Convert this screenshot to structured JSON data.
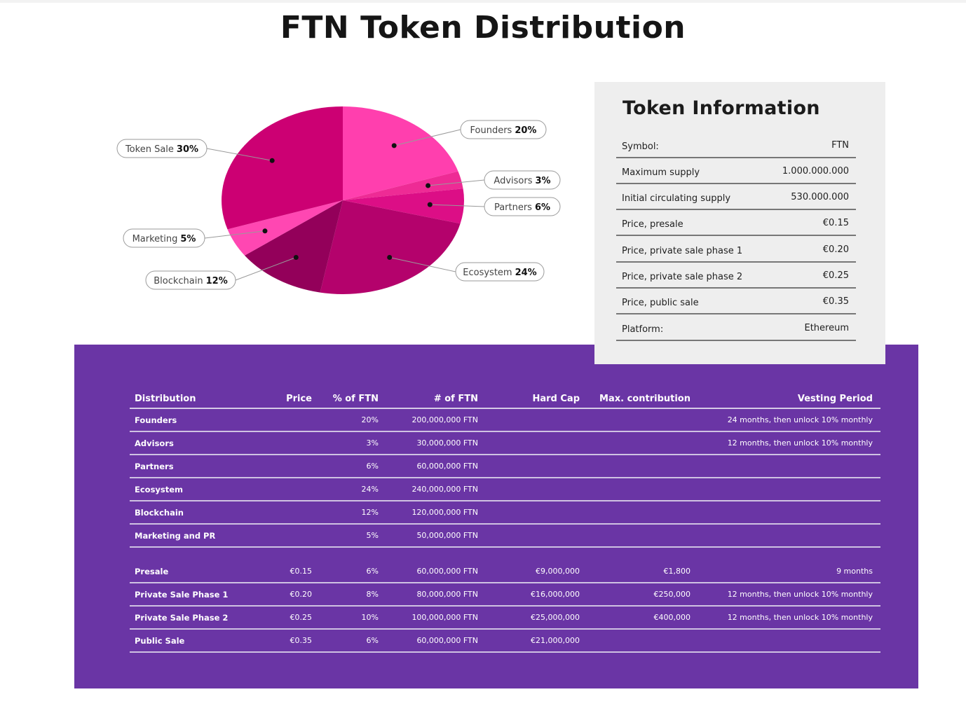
{
  "title": "FTN Token Distribution",
  "chart_data": {
    "type": "pie",
    "title": "",
    "slices": [
      {
        "label": "Founders",
        "pct_label": "20%",
        "value": 20,
        "color": "#ff3fae"
      },
      {
        "label": "Advisors",
        "pct_label": "3%",
        "value": 3,
        "color": "#ee2b95"
      },
      {
        "label": "Partners",
        "pct_label": "6%",
        "value": 6,
        "color": "#dc0e86"
      },
      {
        "label": "Ecosystem",
        "pct_label": "24%",
        "value": 24,
        "color": "#b4026c"
      },
      {
        "label": "Blockchain",
        "pct_label": "12%",
        "value": 12,
        "color": "#93005a"
      },
      {
        "label": "Marketing",
        "pct_label": "5%",
        "value": 5,
        "color": "#ff47b2"
      },
      {
        "label": "Token Sale",
        "pct_label": "30%",
        "value": 30,
        "color": "#cc0073"
      }
    ]
  },
  "token_info": {
    "title": "Token Information",
    "rows": [
      {
        "label": "Symbol:",
        "value": "FTN"
      },
      {
        "label": "Maximum supply",
        "value": "1.000.000.000"
      },
      {
        "label": "Initial circulating supply",
        "value": "530.000.000"
      },
      {
        "label": "Price, presale",
        "value": "€0.15"
      },
      {
        "label": "Price, private sale phase 1",
        "value": "€0.20"
      },
      {
        "label": "Price, private sale phase 2",
        "value": "€0.25"
      },
      {
        "label": "Price, public sale",
        "value": "€0.35"
      },
      {
        "label": "Platform:",
        "value": "Ethereum"
      }
    ]
  },
  "distribution_table": {
    "headers": {
      "distribution": "Distribution",
      "price": "Price",
      "pct": "% of FTN",
      "num": "# of FTN",
      "hardcap": "Hard Cap",
      "maxcontrib": "Max. contribution",
      "vesting": "Vesting Period"
    },
    "group1": [
      {
        "name": "Founders",
        "price": "",
        "pct": "20%",
        "num": "200,000,000 FTN",
        "hardcap": "",
        "maxcontrib": "",
        "vesting": "24 months, then unlock 10% monthly"
      },
      {
        "name": "Advisors",
        "price": "",
        "pct": "3%",
        "num": "30,000,000 FTN",
        "hardcap": "",
        "maxcontrib": "",
        "vesting": "12 months, then unlock 10% monthly"
      },
      {
        "name": "Partners",
        "price": "",
        "pct": "6%",
        "num": "60,000,000 FTN",
        "hardcap": "",
        "maxcontrib": "",
        "vesting": ""
      },
      {
        "name": "Ecosystem",
        "price": "",
        "pct": "24%",
        "num": "240,000,000 FTN",
        "hardcap": "",
        "maxcontrib": "",
        "vesting": ""
      },
      {
        "name": "Blockchain",
        "price": "",
        "pct": "12%",
        "num": "120,000,000 FTN",
        "hardcap": "",
        "maxcontrib": "",
        "vesting": ""
      },
      {
        "name": "Marketing and PR",
        "price": "",
        "pct": "5%",
        "num": "50,000,000 FTN",
        "hardcap": "",
        "maxcontrib": "",
        "vesting": ""
      }
    ],
    "group2": [
      {
        "name": "Presale",
        "price": "€0.15",
        "pct": "6%",
        "num": "60,000,000 FTN",
        "hardcap": "€9,000,000",
        "maxcontrib": "€1,800",
        "vesting": "9 months"
      },
      {
        "name": "Private Sale Phase 1",
        "price": "€0.20",
        "pct": "8%",
        "num": "80,000,000 FTN",
        "hardcap": "€16,000,000",
        "maxcontrib": "€250,000",
        "vesting": "12 months, then unlock 10% monthly"
      },
      {
        "name": "Private Sale Phase 2",
        "price": "€0.25",
        "pct": "10%",
        "num": "100,000,000 FTN",
        "hardcap": "€25,000,000",
        "maxcontrib": "€400,000",
        "vesting": "12 months, then unlock 10% monthly"
      },
      {
        "name": "Public Sale",
        "price": "€0.35",
        "pct": "6%",
        "num": "60,000,000 FTN",
        "hardcap": "€21,000,000",
        "maxcontrib": "",
        "vesting": ""
      }
    ]
  }
}
